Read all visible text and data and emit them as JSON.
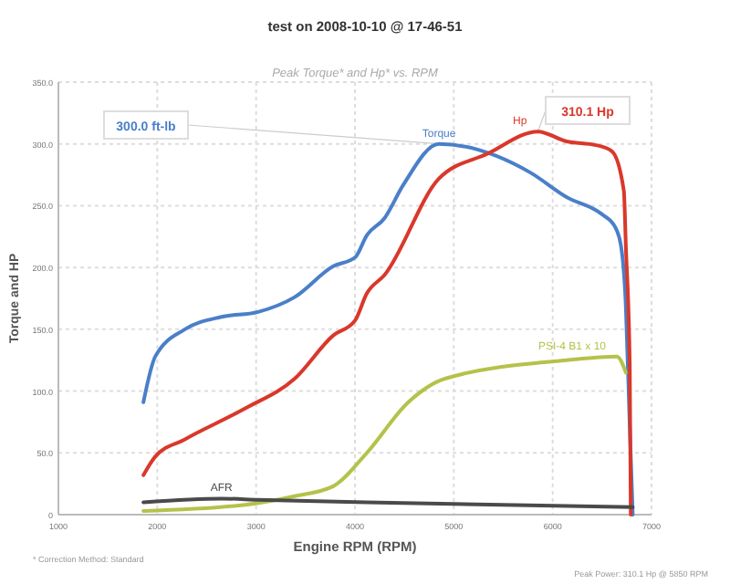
{
  "chart_data": {
    "type": "line",
    "title": "test on 2008-10-10 @ 17-46-51",
    "subtitle": "Peak Torque* and Hp* vs. RPM",
    "xlabel": "Engine RPM (RPM)",
    "ylabel": "Torque and HP",
    "xlim": [
      1000,
      7000
    ],
    "xticks": [
      1000,
      2000,
      3000,
      4000,
      5000,
      6000,
      7000
    ],
    "ylim": [
      0,
      350
    ],
    "yticks": [
      0,
      {
        "value": 50,
        "label": "50.0"
      },
      {
        "value": 100,
        "label": "100.0"
      },
      {
        "value": 150,
        "label": "150.0"
      },
      {
        "value": 200,
        "label": "200.0"
      },
      {
        "value": 250,
        "label": "250.0"
      },
      {
        "value": 300,
        "label": "300.0"
      },
      {
        "value": 350,
        "label": "350.0"
      }
    ],
    "grid": true,
    "marker": "none",
    "line_style": "solid",
    "series": [
      {
        "name": "Torque",
        "color": "#4a7fc9",
        "x": [
          1860,
          1980,
          2280,
          2650,
          3020,
          3390,
          3780,
          4000,
          4120,
          4300,
          4490,
          4850,
          5770,
          6140,
          6500,
          6630,
          6690,
          6740,
          6780,
          6810
        ],
        "values": [
          91,
          128,
          150,
          160,
          164,
          176,
          201,
          208,
          226,
          240,
          267,
          300,
          277,
          257,
          243,
          233,
          218,
          169,
          71,
          0
        ]
      },
      {
        "name": "Hp",
        "color": "#d9382b",
        "x": [
          1860,
          1980,
          2280,
          2890,
          3390,
          3780,
          4000,
          4120,
          4300,
          4850,
          5340,
          5850,
          6140,
          6440,
          6600,
          6720,
          6740,
          6780,
          6790
        ],
        "values": [
          32,
          47,
          61,
          86,
          110,
          145,
          157,
          179,
          194,
          272,
          292,
          310,
          302,
          299,
          294,
          262,
          218,
          120,
          0
        ]
      },
      {
        "name": "PSI-4 B1 x 10",
        "color": "#b5c24a",
        "x": [
          1860,
          2890,
          3390,
          3780,
          4120,
          4540,
          4910,
          6140,
          6650,
          6740
        ],
        "values": [
          3,
          8,
          15,
          23,
          50,
          91,
          110,
          125,
          128,
          115
        ]
      },
      {
        "name": "AFR",
        "color": "#4a4a4a",
        "x": [
          1860,
          2650,
          3020,
          4120,
          6810
        ],
        "values": [
          10,
          13,
          12,
          10,
          6
        ]
      }
    ],
    "annotations": [
      {
        "text": "300.0 ft-lb",
        "x": 4850,
        "y": 300
      },
      {
        "text": "310.1 Hp",
        "x": 5850,
        "y": 310
      },
      "* Correction Method: Standard",
      "Peak Power: 310.1 Hp @ 5850 RPM"
    ]
  }
}
